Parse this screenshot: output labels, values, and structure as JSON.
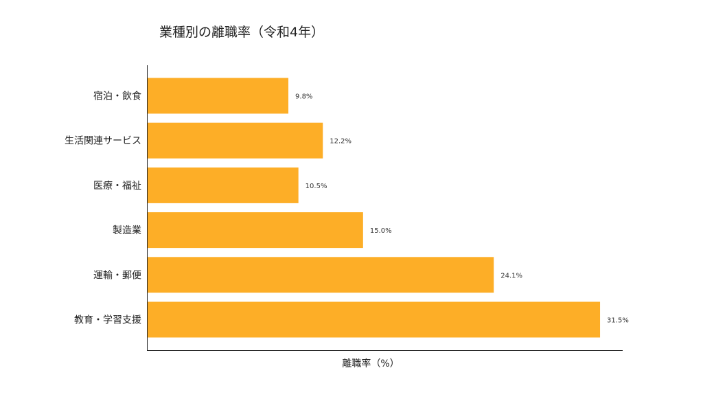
{
  "chart_data": {
    "type": "bar",
    "orientation": "horizontal",
    "title": "業種別の離職率（令和4年）",
    "xlabel": "離職率（%）",
    "ylabel": "",
    "categories": [
      "宿泊・飲食",
      "生活関連サービス",
      "医療・福祉",
      "製造業",
      "運輸・郵便",
      "教育・学習支援"
    ],
    "values": [
      9.8,
      12.2,
      10.5,
      15.0,
      24.1,
      31.5
    ],
    "value_labels": [
      "9.8%",
      "12.2%",
      "10.5%",
      "15.0%",
      "24.1%",
      "31.5%"
    ],
    "xlim": [
      0,
      33.075
    ],
    "bar_color": "#FDAE27",
    "grid": false,
    "legend": "none"
  }
}
